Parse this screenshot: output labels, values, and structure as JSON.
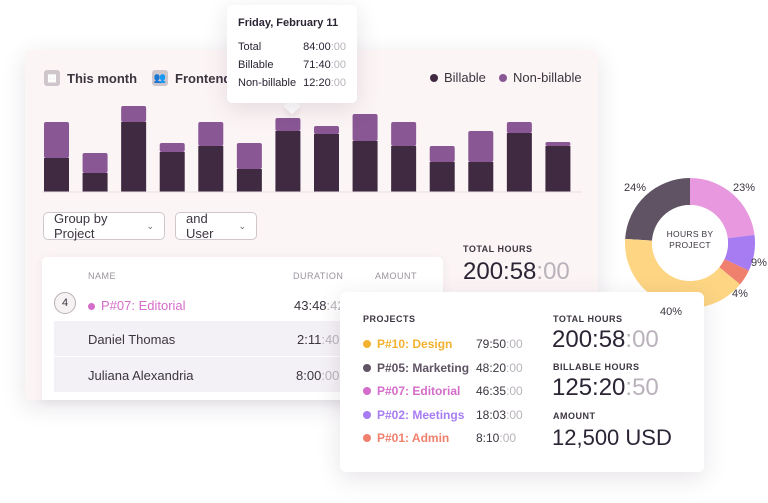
{
  "header": {
    "period_label": "This month",
    "team_label": "Frontend",
    "legend": [
      {
        "label": "Billable",
        "color": "#3f2a42"
      },
      {
        "label": "Non-billable",
        "color": "#8a5795"
      }
    ]
  },
  "chart_data": {
    "type": "bar",
    "stacked": true,
    "series": [
      {
        "name": "Billable",
        "color": "#3f2a42",
        "values": [
          34,
          19,
          70,
          40,
          46,
          23,
          61,
          58,
          51,
          46,
          30,
          30,
          59,
          46
        ]
      },
      {
        "name": "Non-billable",
        "color": "#8a5795",
        "values": [
          36,
          20,
          16,
          9,
          24,
          26,
          13,
          8,
          27,
          24,
          16,
          31,
          11,
          4
        ]
      }
    ],
    "grid": false
  },
  "tooltip": {
    "title": "Friday, February 11",
    "rows": [
      {
        "label": "Total",
        "hm": "84:00",
        "sec": ":00"
      },
      {
        "label": "Billable",
        "hm": "71:40",
        "sec": ":00"
      },
      {
        "label": "Non-billable",
        "hm": "12:20",
        "sec": ":00"
      }
    ]
  },
  "filters": {
    "group_by": "Group by Project",
    "and_user": "and User"
  },
  "table": {
    "headers": {
      "name": "NAME",
      "duration": "DURATION",
      "amount": "AMOUNT"
    },
    "rows": [
      {
        "badge": "4",
        "name": "P#07: Editorial",
        "hm": "43:48",
        "sec": ":42",
        "color": "#d46cc9"
      },
      {
        "name": "Daniel Thomas",
        "hm": "2:11",
        "sec": ":40"
      },
      {
        "name": "Juliana Alexandria",
        "hm": "8:00",
        "sec": ":00"
      }
    ]
  },
  "total_hours_side": {
    "label": "TOTAL HOURS",
    "hm": "200:58",
    "sec": ":00"
  },
  "donut": {
    "center_line1": "HOURS BY",
    "center_line2": "PROJECT",
    "slices": [
      {
        "project": "P#05: Marketing",
        "percent": 24,
        "label": "24%",
        "color": "#5f5364"
      },
      {
        "project": "P#07: Editorial",
        "percent": 23,
        "label": "23%",
        "color": "#e898df"
      },
      {
        "project": "P#02: Meetings",
        "percent": 9,
        "label": "9%",
        "color": "#a77cf2"
      },
      {
        "project": "P#01: Admin",
        "percent": 4,
        "label": "4%",
        "color": "#f0806e"
      },
      {
        "project": "P#10: Design",
        "percent": 40,
        "label": "40%",
        "color": "#fdd583"
      }
    ]
  },
  "projects_card": {
    "title": "PROJECTS",
    "items": [
      {
        "name": "P#10: Design",
        "hm": "79:50",
        "sec": ":00",
        "color": "#f2b22f"
      },
      {
        "name": "P#05: Marketing",
        "hm": "48:20",
        "sec": ":00",
        "color": "#5f5364"
      },
      {
        "name": "P#07: Editorial",
        "hm": "46:35",
        "sec": ":00",
        "color": "#d46cc9"
      },
      {
        "name": "P#02: Meetings",
        "hm": "18:03",
        "sec": ":00",
        "color": "#a77cf2"
      },
      {
        "name": "P#01: Admin",
        "hm": "8:10",
        "sec": ":00",
        "color": "#f0806e"
      }
    ],
    "total_label": "TOTAL HOURS",
    "total_hm": "200:58",
    "total_sec": ":00",
    "billable_label": "BILLABLE HOURS",
    "billable_hm": "125:20",
    "billable_sec": ":50",
    "amount_label": "AMOUNT",
    "amount_value": "12,500 USD"
  }
}
